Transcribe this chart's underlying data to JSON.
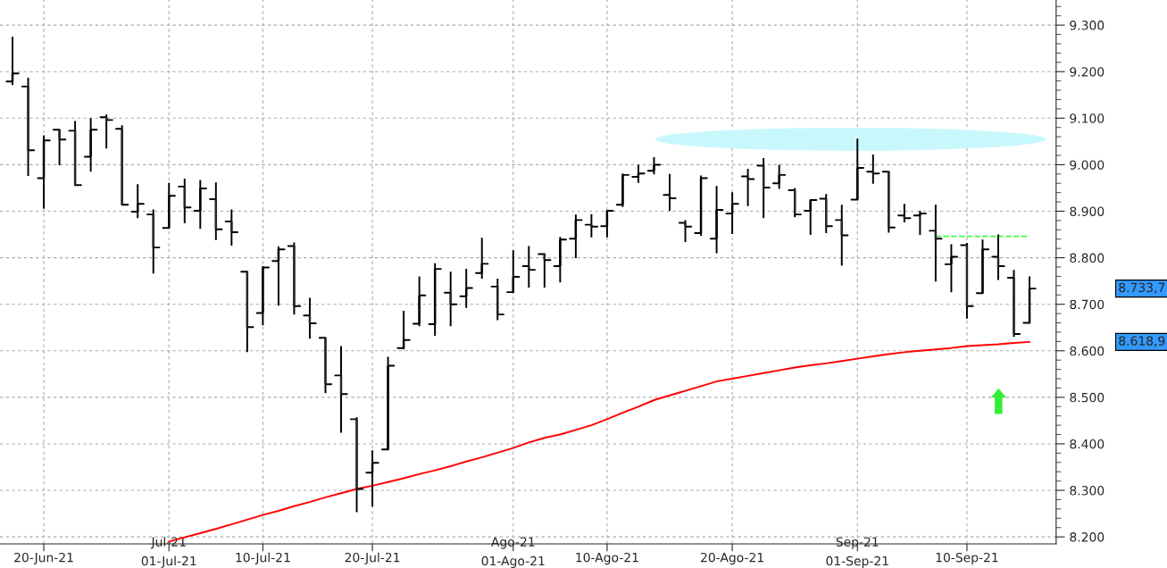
{
  "chart_data": {
    "type": "candlestick",
    "categories": [
      null,
      null,
      "20-Jun-21",
      null,
      null,
      null,
      null,
      null,
      null,
      null,
      "Jul-21\n01-Jul-21",
      null,
      null,
      null,
      null,
      null,
      "10-Jul-21",
      null,
      null,
      null,
      null,
      null,
      null,
      "20-Jul-21",
      null,
      null,
      null,
      null,
      null,
      null,
      null,
      null,
      "Ago-21\n01-Ago-21",
      null,
      null,
      null,
      null,
      null,
      "10-Ago-21",
      null,
      null,
      null,
      null,
      null,
      null,
      null,
      "20-Ago-21",
      null,
      null,
      null,
      null,
      null,
      null,
      null,
      "Sep-21\n01-Sep-21",
      null,
      null,
      null,
      null,
      null,
      null,
      "10-Sep-21",
      null,
      null,
      null,
      null
    ],
    "ohlc": [
      [
        9179,
        9275,
        9171,
        9196
      ],
      [
        9168,
        9187,
        8976,
        9031
      ],
      [
        8971,
        9063,
        8906,
        9052
      ],
      [
        9075,
        9075,
        8999,
        9054
      ],
      [
        9073,
        9094,
        8956,
        8956
      ],
      [
        9017,
        9100,
        8985,
        9075
      ],
      [
        9102,
        9108,
        9035,
        9096
      ],
      [
        9077,
        9085,
        8914,
        8914
      ],
      [
        8899,
        8958,
        8885,
        8916
      ],
      [
        8893,
        8904,
        8766,
        8822
      ],
      [
        8864,
        8961,
        8864,
        8933
      ],
      [
        8953,
        8970,
        8874,
        8908
      ],
      [
        8901,
        8967,
        8862,
        8949
      ],
      [
        8926,
        8962,
        8838,
        8861
      ],
      [
        8878,
        8904,
        8826,
        8855
      ],
      [
        8770,
        8772,
        8597,
        8651
      ],
      [
        8681,
        8782,
        8655,
        8779
      ],
      [
        8793,
        8824,
        8697,
        8818
      ],
      [
        8825,
        8833,
        8678,
        8696
      ],
      [
        8676,
        8714,
        8626,
        8659
      ],
      [
        8628,
        8630,
        8509,
        8528
      ],
      [
        8547,
        8610,
        8424,
        8507
      ],
      [
        8453,
        8457,
        8253,
        8303
      ],
      [
        8338,
        8386,
        8265,
        8359
      ],
      [
        8388,
        8587,
        8386,
        8568
      ],
      [
        8606,
        8686,
        8603,
        8623
      ],
      [
        8658,
        8760,
        8653,
        8719
      ],
      [
        8657,
        8788,
        8632,
        8776
      ],
      [
        8725,
        8770,
        8653,
        8700
      ],
      [
        8717,
        8776,
        8692,
        8735
      ],
      [
        8767,
        8843,
        8755,
        8787
      ],
      [
        8738,
        8755,
        8666,
        8678
      ],
      [
        8726,
        8816,
        8726,
        8759
      ],
      [
        8782,
        8825,
        8736,
        8774
      ],
      [
        8808,
        8808,
        8736,
        8795
      ],
      [
        8782,
        8845,
        8747,
        8839
      ],
      [
        8841,
        8893,
        8799,
        8881
      ],
      [
        8871,
        8894,
        8844,
        8867
      ],
      [
        8868,
        8902,
        8844,
        8901
      ],
      [
        8914,
        8981,
        8909,
        8978
      ],
      [
        8974,
        9000,
        8961,
        8981
      ],
      [
        8987,
        9016,
        8979,
        9000
      ],
      [
        8935,
        8980,
        8901,
        8928
      ],
      [
        8875,
        8881,
        8834,
        8867
      ],
      [
        8853,
        8977,
        8847,
        8971
      ],
      [
        8841,
        8954,
        8810,
        8903
      ],
      [
        8895,
        8941,
        8851,
        8916
      ],
      [
        8975,
        8991,
        8911,
        8969
      ],
      [
        8998,
        9014,
        8885,
        8951
      ],
      [
        8960,
        9000,
        8948,
        8978
      ],
      [
        8945,
        8950,
        8887,
        8893
      ],
      [
        8901,
        8925,
        8849,
        8924
      ],
      [
        8927,
        8937,
        8853,
        8868
      ],
      [
        8881,
        8914,
        8783,
        8848
      ],
      [
        8925,
        9056,
        8925,
        8993
      ],
      [
        8985,
        9022,
        8959,
        8981
      ],
      [
        8985,
        8985,
        8854,
        8865
      ],
      [
        8891,
        8916,
        8876,
        8885
      ],
      [
        8891,
        8901,
        8849,
        8895
      ],
      [
        8858,
        8914,
        8749,
        8841
      ],
      [
        8786,
        8829,
        8726,
        8802
      ],
      [
        8827,
        8832,
        8669,
        8696
      ],
      [
        8724,
        8839,
        8723,
        8818
      ],
      [
        8802,
        8850,
        8752,
        8782
      ],
      [
        8757,
        8774,
        8630,
        8636
      ],
      [
        8660,
        8760,
        8660,
        8733.7
      ]
    ],
    "series": [
      {
        "type": "line",
        "color": "#ff0000",
        "values": [
          null,
          null,
          null,
          null,
          null,
          null,
          null,
          null,
          null,
          null,
          8190,
          8199,
          8208,
          8217,
          8227,
          8237,
          8247,
          8256,
          8266,
          8275,
          8285,
          8294,
          8303,
          8310,
          8318,
          8326,
          8335,
          8343,
          8352,
          8362,
          8371,
          8381,
          8391,
          8403,
          8413,
          8420,
          8430,
          8440,
          8453,
          8467,
          8480,
          8494,
          8504,
          8514,
          8524,
          8534,
          8540,
          8546,
          8552,
          8558,
          8564,
          8569,
          8573,
          8578,
          8583,
          8588,
          8593,
          8597,
          8600,
          8603,
          8606,
          8610,
          8612,
          8614,
          8617,
          8619
        ]
      },
      {
        "type": "line",
        "color": "#33ff33",
        "line_style": "dashed",
        "values": [
          null,
          null,
          null,
          null,
          null,
          null,
          null,
          null,
          null,
          null,
          null,
          null,
          null,
          null,
          null,
          null,
          null,
          null,
          null,
          null,
          null,
          null,
          null,
          null,
          null,
          null,
          null,
          null,
          null,
          null,
          null,
          null,
          null,
          null,
          null,
          null,
          null,
          null,
          null,
          null,
          null,
          null,
          null,
          null,
          null,
          null,
          null,
          null,
          null,
          null,
          null,
          null,
          null,
          null,
          null,
          null,
          null,
          null,
          null,
          8846,
          8846,
          8846,
          8846,
          8846,
          8846,
          8846
        ]
      }
    ],
    "ylim": [
      8185,
      9354
    ],
    "yticks": [
      {
        "value": 8200,
        "label": "8.200"
      },
      {
        "value": 8300,
        "label": "8.300"
      },
      {
        "value": 8400,
        "label": "8.400"
      },
      {
        "value": 8500,
        "label": "8.500"
      },
      {
        "value": 8600,
        "label": "8.600"
      },
      {
        "value": 8700,
        "label": "8.700"
      },
      {
        "value": 8800,
        "label": "8.800"
      },
      {
        "value": 8900,
        "label": "8.900"
      },
      {
        "value": 9000,
        "label": "9.000"
      },
      {
        "value": 9100,
        "label": "9.100"
      },
      {
        "value": 9200,
        "label": "9.200"
      },
      {
        "value": 9300,
        "label": "9.300"
      }
    ],
    "grid": true,
    "annotations": [
      "8.733,7",
      "8.618,9"
    ]
  }
}
